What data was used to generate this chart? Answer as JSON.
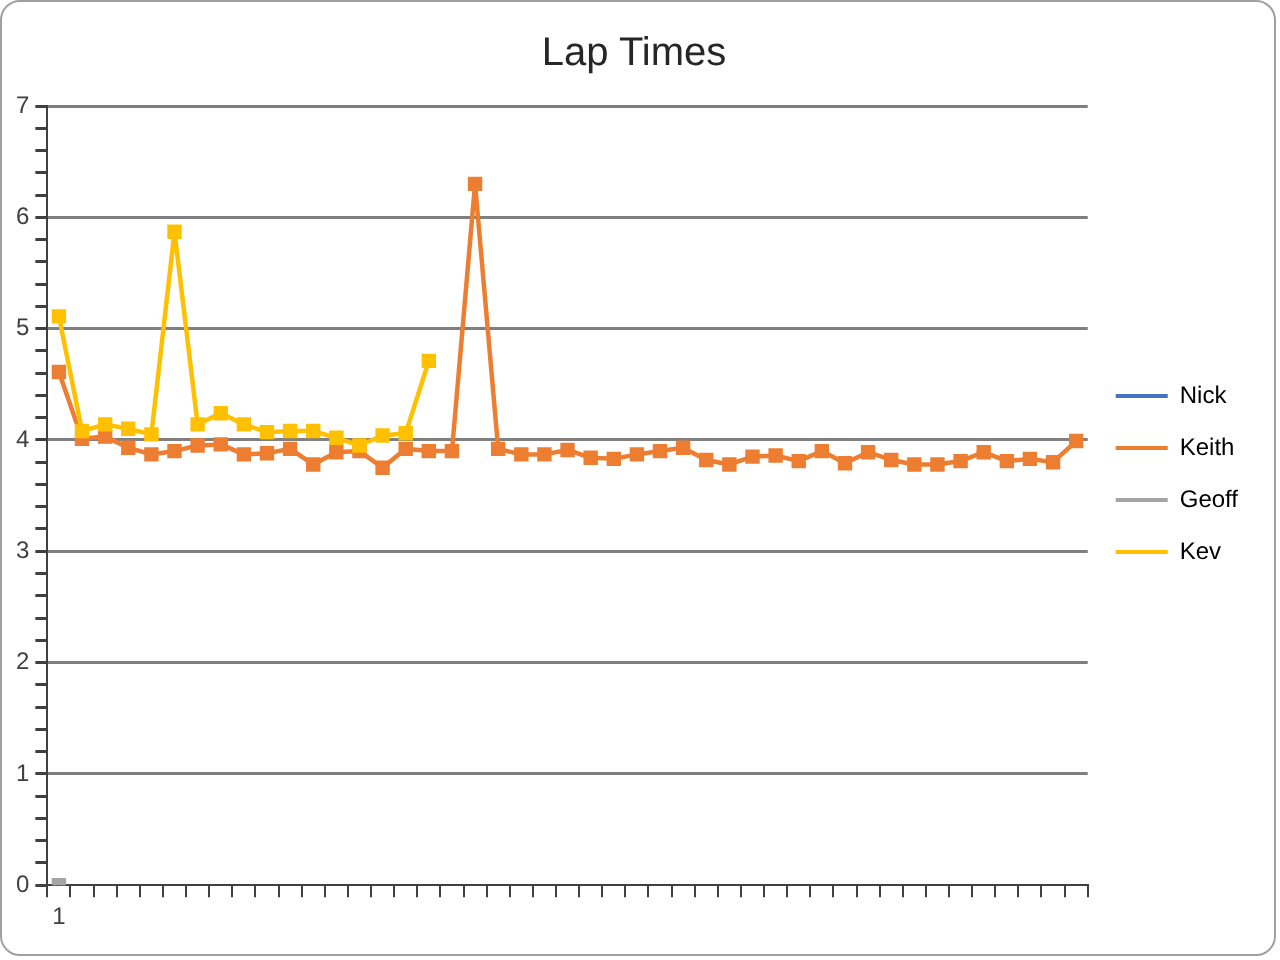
{
  "chart_data": {
    "type": "line",
    "title": "Lap Times",
    "categories": [
      "1",
      null,
      null,
      null,
      null,
      null,
      null,
      null,
      null,
      null,
      null,
      null,
      null,
      null,
      null,
      null,
      null,
      null,
      null,
      null,
      null,
      null,
      null,
      null,
      null,
      null,
      null,
      null,
      null,
      null,
      null,
      null,
      null,
      null,
      null,
      null,
      null,
      null,
      null,
      null,
      null,
      null,
      null,
      null,
      null
    ],
    "series": [
      {
        "name": "Nick",
        "color": "#4472c4",
        "values": [
          null,
          null,
          null,
          null,
          null,
          null,
          null,
          null,
          null,
          null,
          null,
          null,
          null,
          null,
          null,
          null,
          null,
          null,
          null,
          null,
          null,
          null,
          null,
          null,
          null,
          null,
          null,
          null,
          null,
          null,
          null,
          null,
          null,
          null,
          null,
          null,
          null,
          null,
          null,
          null,
          null,
          null,
          null,
          null,
          null
        ]
      },
      {
        "name": "Keith",
        "color": "#ed7d31",
        "values": [
          4.61,
          4.01,
          4.03,
          3.93,
          3.87,
          3.9,
          3.95,
          3.96,
          3.87,
          3.88,
          3.92,
          3.78,
          3.89,
          3.9,
          3.75,
          3.92,
          3.9,
          3.9,
          6.3,
          3.92,
          3.87,
          3.87,
          3.91,
          3.84,
          3.83,
          3.87,
          3.9,
          3.93,
          3.82,
          3.78,
          3.85,
          3.86,
          3.81,
          3.9,
          3.79,
          3.89,
          3.82,
          3.78,
          3.78,
          3.81,
          3.89,
          3.81,
          3.83,
          3.8,
          3.99
        ]
      },
      {
        "name": "Geoff",
        "color": "#a5a5a5",
        "values": [
          0,
          null,
          null,
          null,
          null,
          null,
          null,
          null,
          null,
          null,
          null,
          null,
          null,
          null,
          null,
          null,
          null,
          null,
          null,
          null,
          null,
          null,
          null,
          null,
          null,
          null,
          null,
          null,
          null,
          null,
          null,
          null,
          null,
          null,
          null,
          null,
          null,
          null,
          null,
          null,
          null,
          null,
          null,
          null,
          null
        ]
      },
      {
        "name": "Kev",
        "color": "#ffc000",
        "values": [
          5.11,
          4.08,
          4.14,
          4.1,
          4.05,
          5.87,
          4.14,
          4.24,
          4.14,
          4.07,
          4.08,
          4.08,
          4.02,
          3.95,
          4.04,
          4.06,
          4.71,
          null,
          null,
          null,
          null,
          null,
          null,
          null,
          null,
          null,
          null,
          null,
          null,
          null,
          null,
          null,
          null,
          null,
          null,
          null,
          null,
          null,
          null,
          null,
          null,
          null,
          null,
          null,
          null
        ]
      }
    ],
    "ylim": [
      0,
      7
    ],
    "yticks": [
      0,
      {
        "value": 0.2,
        "label": null
      },
      {
        "value": 0.4,
        "label": null
      },
      {
        "value": 0.6,
        "label": null
      },
      {
        "value": 0.8,
        "label": null
      },
      1,
      {
        "value": 1.2,
        "label": null
      },
      {
        "value": 1.4,
        "label": null
      },
      {
        "value": 1.6,
        "label": null
      },
      {
        "value": 1.8,
        "label": null
      },
      2,
      {
        "value": 2.2,
        "label": null
      },
      {
        "value": 2.4,
        "label": null
      },
      {
        "value": 2.6,
        "label": null
      },
      {
        "value": 2.8,
        "label": null
      },
      3,
      {
        "value": 3.2,
        "label": null
      },
      {
        "value": 3.4,
        "label": null
      },
      {
        "value": 3.6,
        "label": null
      },
      {
        "value": 3.8,
        "label": null
      },
      4,
      {
        "value": 4.2,
        "label": null
      },
      {
        "value": 4.4,
        "label": null
      },
      {
        "value": 4.6,
        "label": null
      },
      {
        "value": 4.8,
        "label": null
      },
      5,
      {
        "value": 5.2,
        "label": null
      },
      {
        "value": 5.4,
        "label": null
      },
      {
        "value": 5.6,
        "label": null
      },
      {
        "value": 5.8,
        "label": null
      },
      6,
      {
        "value": 6.2,
        "label": null
      },
      {
        "value": 6.4,
        "label": null
      },
      {
        "value": 6.6,
        "label": null
      },
      {
        "value": 6.8,
        "label": null
      },
      7
    ],
    "grid": "y",
    "legend": "right",
    "marker": "square",
    "line_style": "solid"
  }
}
